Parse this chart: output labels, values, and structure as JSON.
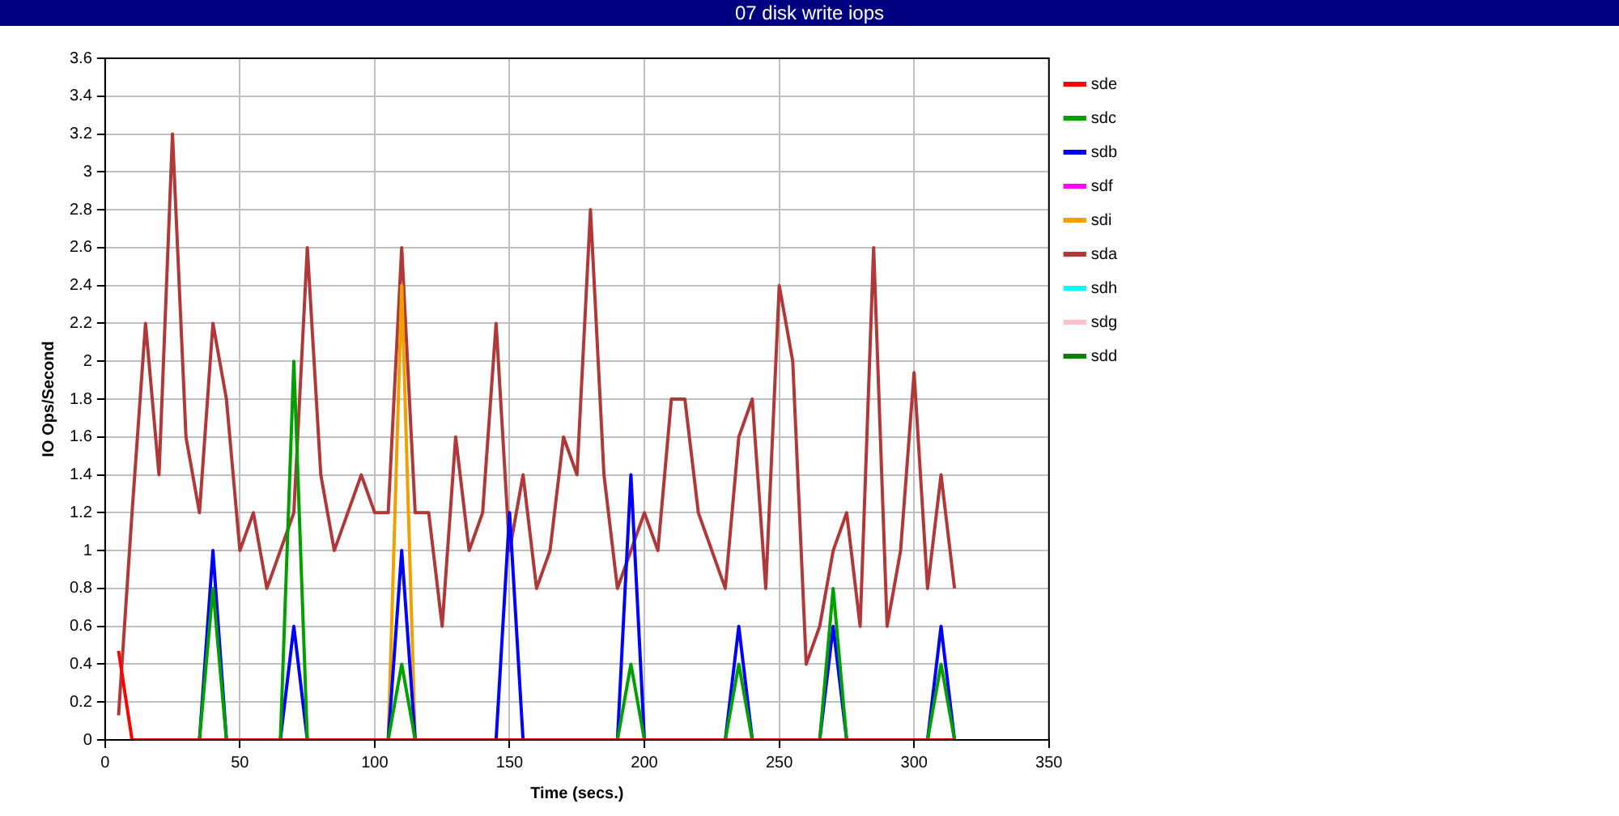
{
  "chart_data": {
    "type": "line",
    "title": "07 disk write iops",
    "xlabel": "Time (secs.)",
    "ylabel": "IO Ops/Second",
    "x": [
      5,
      10,
      15,
      20,
      25,
      30,
      35,
      40,
      45,
      50,
      55,
      60,
      65,
      70,
      75,
      80,
      85,
      90,
      95,
      100,
      105,
      110,
      115,
      120,
      125,
      130,
      135,
      140,
      145,
      150,
      155,
      160,
      165,
      170,
      175,
      180,
      185,
      190,
      195,
      200,
      205,
      210,
      215,
      220,
      225,
      230,
      235,
      240,
      245,
      250,
      255,
      260,
      265,
      270,
      275,
      280,
      285,
      290,
      295,
      300,
      305,
      310,
      315
    ],
    "series": [
      {
        "name": "sde",
        "color": "#ff0000",
        "values": [
          0.47,
          0,
          0,
          0,
          0,
          0,
          0,
          0,
          0,
          0,
          0,
          0,
          0,
          0,
          0,
          0,
          0,
          0,
          0,
          0,
          0,
          0,
          0,
          0,
          0,
          0,
          0,
          0,
          0,
          0,
          0,
          0,
          0,
          0,
          0,
          0,
          0,
          0,
          0,
          0,
          0,
          0,
          0,
          0,
          0,
          0,
          0,
          0,
          0,
          0,
          0,
          0,
          0,
          0,
          0,
          0,
          0,
          0,
          0,
          0,
          0,
          0,
          0
        ]
      },
      {
        "name": "sdc",
        "color": "#00a000",
        "values": [
          null,
          null,
          null,
          null,
          null,
          null,
          0,
          0.8,
          0,
          null,
          null,
          null,
          0,
          2,
          0,
          null,
          null,
          null,
          null,
          null,
          0,
          0.4,
          0,
          null,
          null,
          null,
          null,
          null,
          null,
          null,
          null,
          null,
          null,
          null,
          null,
          null,
          null,
          0,
          0.4,
          0,
          null,
          null,
          null,
          null,
          null,
          0,
          0.4,
          0,
          null,
          null,
          null,
          null,
          0,
          0.8,
          0,
          null,
          null,
          null,
          null,
          null,
          0,
          0.4,
          0
        ]
      },
      {
        "name": "sdb",
        "color": "#0000ff",
        "values": [
          null,
          null,
          null,
          null,
          null,
          null,
          0,
          1,
          0,
          null,
          null,
          null,
          0,
          0.6,
          0,
          null,
          null,
          null,
          null,
          null,
          0,
          1,
          0,
          null,
          null,
          null,
          null,
          null,
          0,
          1.2,
          0,
          null,
          null,
          null,
          null,
          null,
          null,
          0,
          1.4,
          0,
          null,
          null,
          null,
          null,
          null,
          0,
          0.6,
          0,
          null,
          null,
          null,
          null,
          0,
          0.6,
          0,
          null,
          null,
          null,
          null,
          null,
          0,
          0.6,
          0
        ]
      },
      {
        "name": "sdf",
        "color": "#ff00ff",
        "values": [
          null,
          null,
          null,
          null,
          null,
          null,
          null,
          null,
          null,
          null,
          null,
          null,
          null,
          null,
          null,
          null,
          null,
          null,
          null,
          null,
          null,
          null,
          null,
          null,
          null,
          null,
          null,
          null,
          null,
          null,
          null,
          null,
          null,
          null,
          null,
          null,
          null,
          null,
          null,
          null,
          null,
          null,
          null,
          null,
          null,
          null,
          null,
          null,
          null,
          null,
          null,
          null,
          null,
          null,
          null,
          null,
          null,
          null,
          null,
          null,
          null,
          null,
          null
        ]
      },
      {
        "name": "sdi",
        "color": "#f0a000",
        "values": [
          null,
          null,
          null,
          null,
          null,
          null,
          null,
          null,
          null,
          null,
          null,
          null,
          null,
          null,
          null,
          null,
          null,
          null,
          null,
          null,
          0,
          2.4,
          0,
          null,
          null,
          null,
          null,
          null,
          null,
          null,
          null,
          null,
          null,
          null,
          null,
          null,
          null,
          null,
          null,
          null,
          null,
          null,
          null,
          null,
          null,
          null,
          null,
          null,
          null,
          null,
          null,
          null,
          null,
          null,
          null,
          null,
          null,
          null,
          null,
          null,
          null,
          null,
          null
        ]
      },
      {
        "name": "sda",
        "color": "#b03838",
        "values": [
          0.13,
          1.2,
          2.2,
          1.4,
          3.2,
          1.6,
          1.2,
          2.2,
          1.8,
          1,
          1.2,
          0.8,
          1,
          1.2,
          2.6,
          1.4,
          1,
          1.2,
          1.4,
          1.2,
          1.2,
          2.6,
          1.2,
          1.2,
          0.6,
          1.6,
          1,
          1.2,
          2.2,
          1,
          1.4,
          0.8,
          1,
          1.6,
          1.4,
          2.8,
          1.4,
          0.8,
          1,
          1.2,
          1,
          1.8,
          1.8,
          1.2,
          1,
          0.8,
          1.6,
          1.8,
          0.8,
          2.4,
          2,
          0.4,
          0.6,
          1,
          1.2,
          0.6,
          2.6,
          0.6,
          1,
          1.94,
          0.8,
          1.4,
          0.8
        ]
      },
      {
        "name": "sdh",
        "color": "#00ffff",
        "values": [
          null,
          null,
          null,
          null,
          null,
          null,
          null,
          null,
          null,
          null,
          null,
          null,
          null,
          null,
          null,
          null,
          null,
          null,
          null,
          null,
          null,
          null,
          null,
          null,
          null,
          null,
          null,
          null,
          null,
          null,
          null,
          null,
          null,
          null,
          null,
          null,
          null,
          null,
          null,
          null,
          null,
          null,
          null,
          null,
          null,
          null,
          null,
          null,
          null,
          null,
          null,
          null,
          null,
          null,
          null,
          null,
          null,
          null,
          null,
          null,
          null,
          null,
          null
        ]
      },
      {
        "name": "sdg",
        "color": "#ffc0cb",
        "values": [
          null,
          null,
          null,
          null,
          null,
          null,
          null,
          null,
          null,
          null,
          null,
          null,
          null,
          null,
          null,
          null,
          null,
          null,
          null,
          null,
          null,
          null,
          null,
          null,
          null,
          null,
          null,
          null,
          null,
          null,
          null,
          null,
          null,
          null,
          null,
          null,
          null,
          null,
          null,
          null,
          null,
          null,
          null,
          null,
          null,
          null,
          null,
          null,
          null,
          null,
          null,
          null,
          null,
          null,
          null,
          null,
          null,
          null,
          null,
          null,
          null,
          null,
          null
        ]
      },
      {
        "name": "sdd",
        "color": "#008000",
        "values": [
          null,
          null,
          null,
          null,
          null,
          null,
          null,
          null,
          null,
          null,
          null,
          null,
          null,
          null,
          null,
          null,
          null,
          null,
          null,
          null,
          null,
          null,
          null,
          null,
          null,
          null,
          null,
          null,
          null,
          null,
          null,
          null,
          null,
          null,
          null,
          null,
          null,
          null,
          null,
          null,
          null,
          null,
          null,
          null,
          null,
          null,
          null,
          null,
          null,
          null,
          null,
          null,
          null,
          null,
          null,
          null,
          null,
          null,
          null,
          null,
          null,
          null,
          null
        ]
      }
    ],
    "xlim": [
      0,
      350
    ],
    "xticks": [
      0,
      50,
      100,
      150,
      200,
      250,
      300,
      350
    ],
    "ylim": [
      0,
      3.6
    ],
    "yticks": [
      0,
      0.2,
      0.4,
      0.6,
      0.8,
      1,
      1.2,
      1.4,
      1.6,
      1.8,
      2,
      2.2,
      2.4,
      2.6,
      2.8,
      3,
      3.2,
      3.4,
      3.6
    ],
    "grid": true,
    "legend": "top right",
    "marker": "none",
    "line_style": "solid"
  }
}
